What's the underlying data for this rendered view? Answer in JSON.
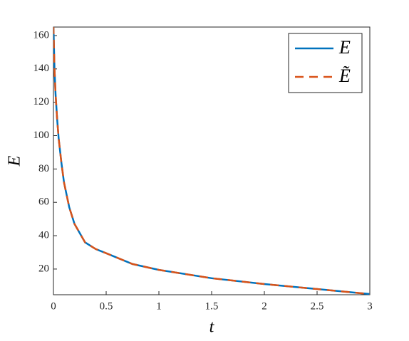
{
  "chart_data": {
    "type": "line",
    "x_label": "t",
    "y_label": "E",
    "x": [
      0,
      0.01,
      0.02,
      0.035,
      0.05,
      0.075,
      0.1,
      0.15,
      0.2,
      0.3,
      0.4,
      0.5,
      0.75,
      1,
      1.5,
      2,
      2.5,
      3
    ],
    "series": [
      {
        "name": "E",
        "color": "#0072bd",
        "style": "solid",
        "values": [
          166,
          140,
          125,
          110,
          98,
          84,
          72,
          57,
          47,
          36,
          32,
          29.5,
          23,
          19.5,
          14.5,
          11,
          8,
          5
        ]
      },
      {
        "name": "Ẽ",
        "color": "#d95319",
        "style": "dashed",
        "values": [
          166,
          140,
          125,
          110,
          98,
          84,
          72,
          57,
          47,
          36,
          32,
          29.5,
          23,
          19.5,
          14.5,
          11,
          8,
          5
        ]
      }
    ],
    "xlim": [
      0,
      3
    ],
    "ylim": [
      4.6,
      165.1
    ],
    "xticks": [
      0,
      0.5,
      1,
      1.5,
      2,
      2.5,
      3
    ],
    "yticks": [
      20,
      40,
      60,
      80,
      100,
      120,
      140,
      160
    ],
    "grid": false,
    "legend": "top-right"
  }
}
